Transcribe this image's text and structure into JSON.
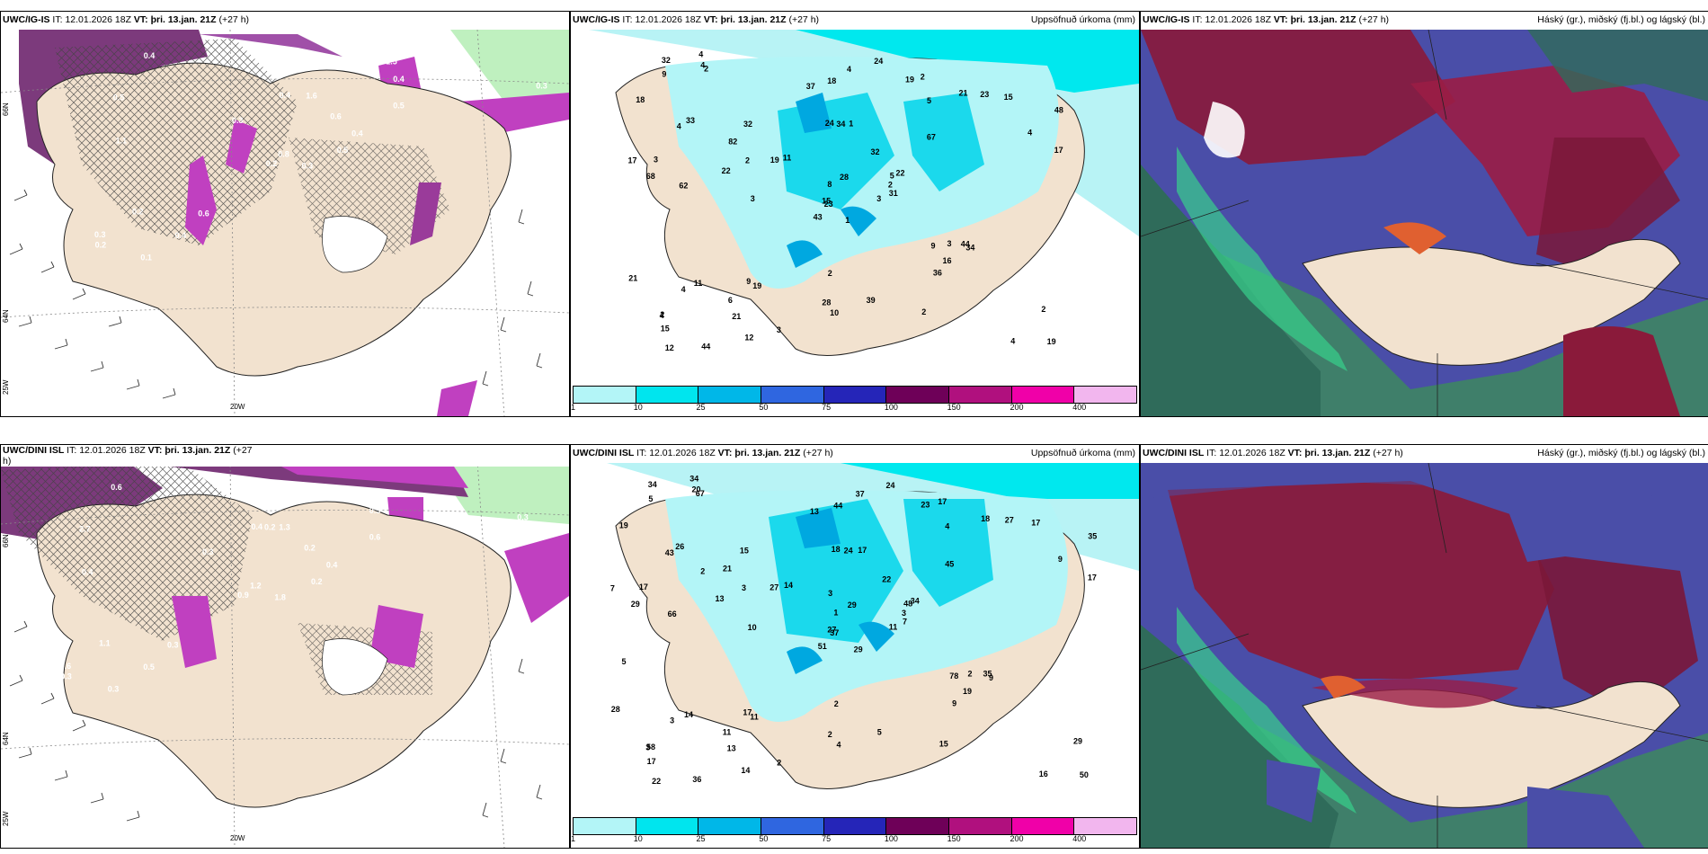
{
  "panels": {
    "tl": {
      "model": "UWC/IG-IS",
      "it_label": "IT:",
      "it": "12.01.2026 18Z",
      "vt_label": "VT:",
      "vt": "þri. 13.jan. 21Z",
      "lead": "(+27 h)",
      "right": ""
    },
    "tm": {
      "model": "UWC/IG-IS",
      "it_label": "IT:",
      "it": "12.01.2026 18Z",
      "vt_label": "VT:",
      "vt": "þri. 13.jan. 21Z",
      "lead": "(+27 h)",
      "right": "Uppsöfnuð úrkoma (mm)"
    },
    "tr": {
      "model": "UWC/IG-IS",
      "it_label": "IT:",
      "it": "12.01.2026 18Z",
      "vt_label": "VT:",
      "vt": "þri. 13.jan. 21Z",
      "lead": "(+27 h)",
      "right": "Háský (gr.), miðský (fj.bl.) og lágský (bl.)"
    },
    "bl": {
      "model": "UWC/DINI ISL",
      "it_label": "IT:",
      "it": "12.01.2026 18Z",
      "vt_label": "VT:",
      "vt": "þri. 13.jan. 21Z",
      "lead": "(+27",
      "right": ""
    },
    "bm": {
      "model": "UWC/DINI ISL",
      "it_label": "IT:",
      "it": "12.01.2026 18Z",
      "vt_label": "VT:",
      "vt": "þri. 13.jan. 21Z",
      "lead": "(+27 h)",
      "right": "Uppsöfnuð úrkoma (mm)"
    },
    "br": {
      "model": "UWC/DINI ISL",
      "it_label": "IT:",
      "it": "12.01.2026 18Z",
      "vt_label": "VT:",
      "vt": "þri. 13.jan. 21Z",
      "lead": "(+27 h)",
      "right": "Háský (gr.), miðský (fj.bl.) og lágský (bl.)"
    }
  },
  "bl_wrap": "h)",
  "axis": {
    "lon_20w": "20W",
    "lon_25w": "25W",
    "lat_66n": "66N",
    "lat_64n": "64N"
  },
  "colorbar": {
    "labels": [
      "1",
      "10",
      "25",
      "50",
      "75",
      "100",
      "150",
      "200",
      "400"
    ],
    "colors": [
      "#b3f5f7",
      "#00e5ee",
      "#00b7e8",
      "#2f66e0",
      "#2525b8",
      "#6e0058",
      "#b0107e",
      "#f000a8",
      "#f2b6ee"
    ]
  },
  "precip_top": [
    "1",
    "4",
    "23",
    "2",
    "5",
    "19",
    "2",
    "1",
    "5",
    "3",
    "2",
    "19",
    "62",
    "48",
    "43",
    "67",
    "44",
    "24",
    "32",
    "11",
    "11",
    "15",
    "21",
    "34",
    "22",
    "34",
    "33",
    "18",
    "68",
    "9",
    "17",
    "15",
    "28",
    "8",
    "32",
    "21",
    "9",
    "4",
    "2",
    "44",
    "24",
    "19",
    "22",
    "36",
    "12",
    "17",
    "2",
    "12",
    "10",
    "31",
    "4",
    "4",
    "18",
    "16",
    "2",
    "6",
    "4",
    "32",
    "39",
    "15",
    "4",
    "3",
    "3",
    "82",
    "23",
    "4",
    "19",
    "37",
    "28",
    "21",
    "2",
    "3",
    "3",
    "2",
    "4",
    "9"
  ],
  "precip_bot": [
    "29",
    "43",
    "37",
    "58",
    "48",
    "11",
    "17",
    "17",
    "4",
    "11",
    "67",
    "50",
    "66",
    "35",
    "51",
    "45",
    "36",
    "18",
    "22",
    "14",
    "14",
    "17",
    "13",
    "24",
    "34",
    "9",
    "26",
    "44",
    "29",
    "78",
    "17",
    "27",
    "2",
    "1",
    "15",
    "18",
    "17",
    "16",
    "29",
    "35",
    "24",
    "27",
    "13",
    "9",
    "14",
    "7",
    "3",
    "22",
    "4",
    "7",
    "3",
    "9",
    "19",
    "19",
    "15",
    "11",
    "20",
    "34",
    "5",
    "17",
    "37",
    "10",
    "17",
    "21",
    "27",
    "34",
    "23",
    "13",
    "29",
    "28",
    "2",
    "2",
    "2",
    "3",
    "3",
    "5",
    "2",
    "5",
    "3"
  ],
  "wind_top": [
    "0.3",
    "0.5",
    "0.8",
    "0.3",
    "0.4",
    "0.6",
    "1.5",
    "1.6",
    "0.4",
    "0.5",
    "0.4",
    "0.5",
    "1.1",
    "0.3",
    "0.2",
    "0.5",
    "0.1",
    "0.4",
    "0.6",
    "0.2",
    "0.3",
    "0.2",
    "0.4"
  ],
  "wind_bot": [
    "1.8",
    "2.7",
    "1.2",
    "0.6",
    "0.4",
    "0.3",
    "0.3",
    "1.3",
    "0.5",
    "0.2",
    "0.6",
    "0.3",
    "0.4",
    "0.3",
    "0.9",
    "0.6",
    "0.3",
    "0.4",
    "0.2",
    "1.1",
    "0.3",
    "0.3",
    "0.5",
    "0.2"
  ]
}
